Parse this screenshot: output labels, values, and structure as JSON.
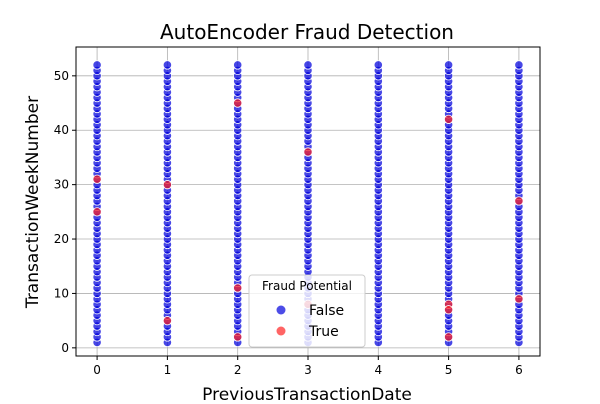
{
  "chart_data": {
    "type": "scatter",
    "title": "AutoEncoder Fraud Detection",
    "xlabel": "PreviousTransactionDate",
    "ylabel": "TransactionWeekNumber",
    "xlim": [
      -0.3,
      6.3
    ],
    "ylim": [
      -1.5,
      55.3
    ],
    "xticks": [
      0,
      1,
      2,
      3,
      4,
      5,
      6
    ],
    "yticks": [
      0,
      10,
      20,
      30,
      40,
      50
    ],
    "grid": true,
    "legend": {
      "title": "Fraud Potential",
      "placement": "bottom-center"
    },
    "series": [
      {
        "name": "False",
        "color": "#0000dd",
        "x_values": [
          0,
          1,
          2,
          3,
          4,
          5,
          6
        ],
        "y_min": 1,
        "y_max": 52
      },
      {
        "name": "True",
        "color": "#ff2222",
        "points": [
          {
            "x": 0,
            "y": 31
          },
          {
            "x": 0,
            "y": 25
          },
          {
            "x": 1,
            "y": 30
          },
          {
            "x": 1,
            "y": 5
          },
          {
            "x": 2,
            "y": 45
          },
          {
            "x": 2,
            "y": 11
          },
          {
            "x": 2,
            "y": 2
          },
          {
            "x": 3,
            "y": 36
          },
          {
            "x": 3,
            "y": 8
          },
          {
            "x": 5,
            "y": 42
          },
          {
            "x": 5,
            "y": 8
          },
          {
            "x": 5,
            "y": 7
          },
          {
            "x": 5,
            "y": 2
          },
          {
            "x": 6,
            "y": 27
          },
          {
            "x": 6,
            "y": 9
          }
        ]
      }
    ]
  }
}
